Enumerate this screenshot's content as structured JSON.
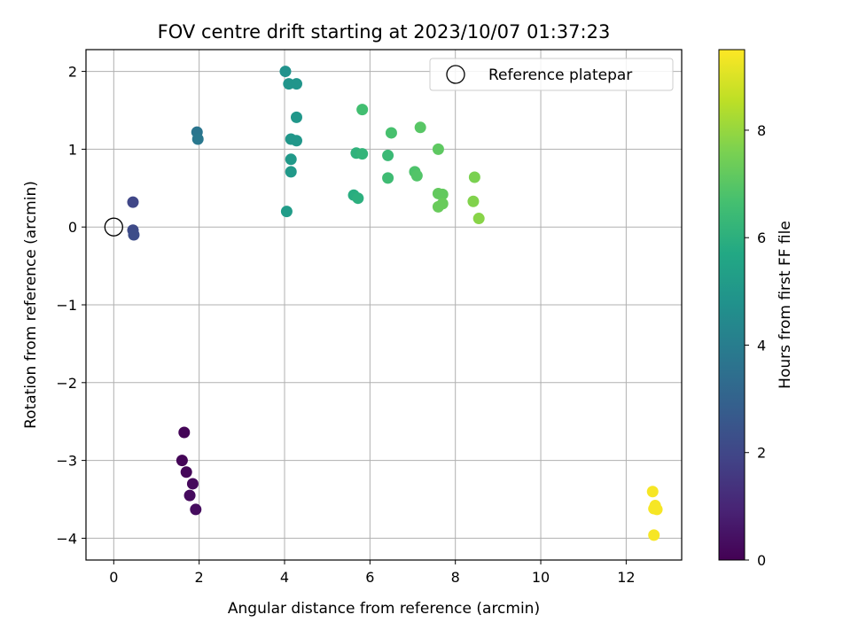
{
  "chart_data": {
    "type": "scatter",
    "title": "FOV centre drift starting at 2023/10/07 01:37:23",
    "xlabel": "Angular distance from reference (arcmin)",
    "ylabel": "Rotation from reference (arcmin)",
    "xlim": [
      -0.65,
      13.3
    ],
    "ylim": [
      -4.28,
      2.28
    ],
    "x_ticks": [
      0,
      2,
      4,
      6,
      8,
      10,
      12
    ],
    "y_ticks": [
      -4,
      -3,
      -2,
      -1,
      0,
      1,
      2
    ],
    "grid": true,
    "legend": {
      "location": "top-right",
      "entries": [
        "Reference platepar"
      ]
    },
    "reference_point": {
      "x": 0,
      "y": 0,
      "label": "Reference platepar"
    },
    "colorbar": {
      "label": "Hours from first FF file",
      "range": [
        0,
        9.5
      ],
      "ticks": [
        0,
        2,
        4,
        6,
        8
      ],
      "colormap": "viridis"
    },
    "points": [
      {
        "x": 1.65,
        "y": -2.64,
        "c": 0.1
      },
      {
        "x": 1.6,
        "y": -3.0,
        "c": 0.1
      },
      {
        "x": 1.7,
        "y": -3.15,
        "c": 0.15
      },
      {
        "x": 1.85,
        "y": -3.3,
        "c": 0.2
      },
      {
        "x": 1.78,
        "y": -3.45,
        "c": 0.25
      },
      {
        "x": 1.92,
        "y": -3.63,
        "c": 0.3
      },
      {
        "x": 0.45,
        "y": 0.32,
        "c": 2.0
      },
      {
        "x": 0.45,
        "y": -0.04,
        "c": 2.1
      },
      {
        "x": 0.47,
        "y": -0.1,
        "c": 2.2
      },
      {
        "x": 1.95,
        "y": 1.22,
        "c": 3.7
      },
      {
        "x": 1.97,
        "y": 1.13,
        "c": 3.8
      },
      {
        "x": 4.02,
        "y": 2.0,
        "c": 4.8
      },
      {
        "x": 4.1,
        "y": 1.84,
        "c": 4.9
      },
      {
        "x": 4.28,
        "y": 1.84,
        "c": 4.9
      },
      {
        "x": 4.28,
        "y": 1.41,
        "c": 5.0
      },
      {
        "x": 4.15,
        "y": 1.13,
        "c": 5.0
      },
      {
        "x": 4.28,
        "y": 1.11,
        "c": 5.0
      },
      {
        "x": 4.15,
        "y": 0.87,
        "c": 5.1
      },
      {
        "x": 4.15,
        "y": 0.71,
        "c": 5.1
      },
      {
        "x": 4.05,
        "y": 0.2,
        "c": 5.2
      },
      {
        "x": 5.82,
        "y": 1.51,
        "c": 6.6
      },
      {
        "x": 6.5,
        "y": 1.21,
        "c": 6.7
      },
      {
        "x": 7.18,
        "y": 1.28,
        "c": 7.0
      },
      {
        "x": 5.68,
        "y": 0.95,
        "c": 6.1
      },
      {
        "x": 5.82,
        "y": 0.94,
        "c": 6.2
      },
      {
        "x": 6.42,
        "y": 0.92,
        "c": 6.4
      },
      {
        "x": 6.42,
        "y": 0.63,
        "c": 6.5
      },
      {
        "x": 5.62,
        "y": 0.41,
        "c": 5.9
      },
      {
        "x": 5.72,
        "y": 0.37,
        "c": 6.0
      },
      {
        "x": 7.05,
        "y": 0.71,
        "c": 6.8
      },
      {
        "x": 7.1,
        "y": 0.66,
        "c": 6.9
      },
      {
        "x": 7.6,
        "y": 1.0,
        "c": 7.1
      },
      {
        "x": 7.6,
        "y": 0.43,
        "c": 7.2
      },
      {
        "x": 7.7,
        "y": 0.42,
        "c": 7.2
      },
      {
        "x": 7.6,
        "y": 0.26,
        "c": 7.3
      },
      {
        "x": 7.7,
        "y": 0.3,
        "c": 7.3
      },
      {
        "x": 8.45,
        "y": 0.64,
        "c": 7.6
      },
      {
        "x": 8.42,
        "y": 0.33,
        "c": 7.7
      },
      {
        "x": 8.55,
        "y": 0.11,
        "c": 7.8
      },
      {
        "x": 12.62,
        "y": -3.4,
        "c": 9.4
      },
      {
        "x": 12.68,
        "y": -3.58,
        "c": 9.4
      },
      {
        "x": 12.65,
        "y": -3.62,
        "c": 9.4
      },
      {
        "x": 12.72,
        "y": -3.63,
        "c": 9.4
      },
      {
        "x": 12.65,
        "y": -3.96,
        "c": 9.4
      }
    ]
  }
}
